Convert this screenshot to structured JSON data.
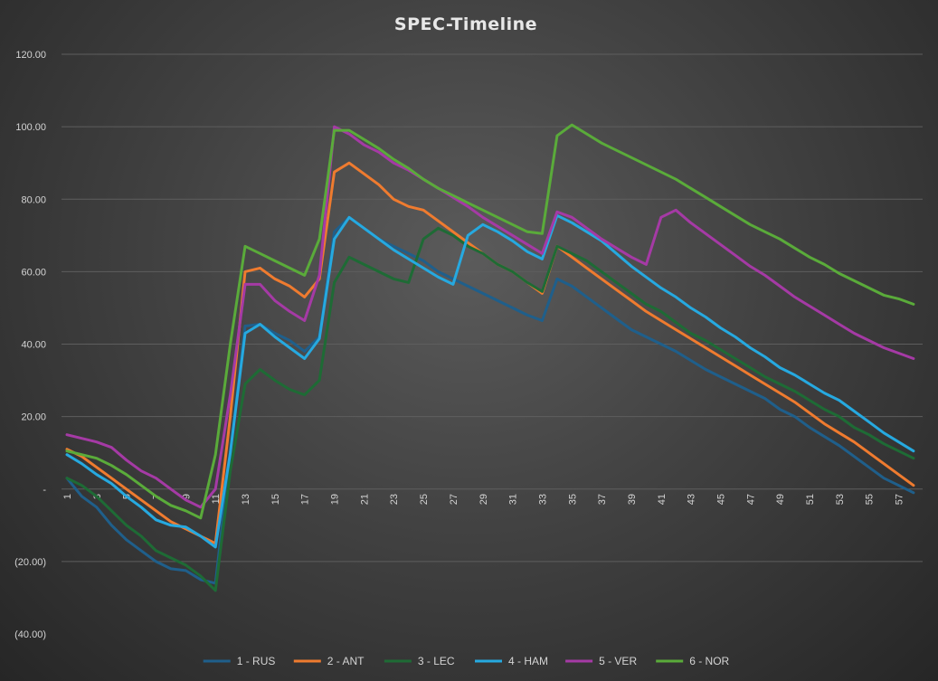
{
  "chart_data": {
    "type": "line",
    "title": "SPEC-Timeline",
    "xlabel": "",
    "ylabel": "",
    "ylim": [
      -40,
      120
    ],
    "yticks": [
      120,
      100,
      80,
      60,
      40,
      20,
      0,
      -20,
      -40
    ],
    "ytick_labels": [
      "120.00",
      "100.00",
      "80.00",
      "60.00",
      "40.00",
      "20.00",
      "-",
      "(20.00)",
      "(40.00)"
    ],
    "x": [
      1,
      2,
      3,
      4,
      5,
      6,
      7,
      8,
      9,
      10,
      11,
      12,
      13,
      14,
      15,
      16,
      17,
      18,
      19,
      20,
      21,
      22,
      23,
      24,
      25,
      26,
      27,
      28,
      29,
      30,
      31,
      32,
      33,
      34,
      35,
      36,
      37,
      38,
      39,
      40,
      41,
      42,
      43,
      44,
      45,
      46,
      47,
      48,
      49,
      50,
      51,
      52,
      53,
      54,
      55,
      56,
      57,
      58
    ],
    "xtick_labels": [
      "1",
      "3",
      "5",
      "7",
      "9",
      "11",
      "13",
      "15",
      "17",
      "19",
      "21",
      "23",
      "25",
      "27",
      "29",
      "31",
      "33",
      "35",
      "37",
      "39",
      "41",
      "43",
      "45",
      "47",
      "49",
      "51",
      "53",
      "55",
      "57"
    ],
    "grid": true,
    "legend_position": "bottom",
    "series": [
      {
        "name": "1 - RUS",
        "color": "#1f5f8b",
        "values": [
          3,
          -2,
          -5,
          -10,
          -14,
          -17,
          -20,
          -22,
          -22.5,
          -25,
          -26,
          10,
          45,
          45.5,
          43,
          41,
          38,
          42,
          71,
          75,
          72,
          69,
          67,
          65,
          63,
          60,
          58,
          56,
          54,
          52,
          50,
          48,
          46.5,
          58,
          56,
          53,
          50,
          47,
          44,
          42,
          40,
          38,
          35.5,
          33,
          31,
          29,
          27,
          25,
          22,
          20,
          17,
          14.5,
          12,
          9,
          6,
          3,
          1,
          -1
        ]
      },
      {
        "name": "2 - ANT",
        "color": "#ef7b2f",
        "values": [
          11,
          9,
          6,
          3,
          0,
          -3,
          -6,
          -9,
          -11,
          -13,
          -15,
          20,
          60,
          61,
          58,
          56,
          53,
          58,
          87.5,
          90,
          87,
          84,
          80,
          78,
          77,
          74,
          71,
          68,
          65,
          62,
          60,
          57,
          54,
          67,
          64,
          61,
          58,
          55,
          52,
          49,
          46.5,
          44,
          41.5,
          39,
          36.5,
          34,
          31.5,
          29,
          26.5,
          24,
          21,
          18,
          15.5,
          13,
          10,
          7,
          4,
          1
        ]
      },
      {
        "name": "3 - LEC",
        "color": "#1e6b35",
        "values": [
          3,
          1,
          -2,
          -6,
          -10,
          -13,
          -17,
          -19,
          -21,
          -24,
          -28,
          5,
          29,
          33,
          30,
          27.5,
          26,
          30,
          57,
          64,
          62,
          60,
          58,
          57,
          69,
          72,
          70,
          67,
          65,
          62,
          60,
          57,
          54.5,
          67,
          65,
          63,
          60,
          57,
          54,
          51,
          49,
          46,
          43,
          41,
          38.5,
          36,
          33.5,
          31,
          29,
          27,
          24.5,
          22,
          20,
          17,
          15,
          12.5,
          10.5,
          8.5
        ]
      },
      {
        "name": "4 - HAM",
        "color": "#26a9e0",
        "values": [
          9.5,
          7,
          4,
          1.5,
          -2,
          -5,
          -8.5,
          -10,
          -10.5,
          -13,
          -16,
          10,
          43,
          45.5,
          42,
          39,
          36,
          41.5,
          69,
          75,
          72,
          69,
          66,
          63.5,
          61,
          58.5,
          56.5,
          70,
          73,
          71,
          68.5,
          65.5,
          63.5,
          75.5,
          73.5,
          71,
          68.5,
          65,
          61.5,
          58.5,
          55.5,
          53,
          50,
          47.5,
          44.5,
          42,
          39,
          36.5,
          33.5,
          31.5,
          29,
          26.5,
          24.5,
          21.5,
          18.5,
          15.5,
          13,
          10.5
        ]
      },
      {
        "name": "5 - VER",
        "color": "#a53aa5",
        "values": [
          15,
          14,
          13,
          11.5,
          8,
          5,
          3,
          0,
          -3,
          -5,
          0,
          26,
          56.5,
          56.5,
          52,
          49,
          46.5,
          59,
          100,
          98,
          95,
          93,
          90,
          88,
          85.5,
          83,
          80.5,
          78,
          75,
          72.5,
          70,
          67.5,
          65,
          76.5,
          75,
          72,
          69,
          66.5,
          64,
          62,
          75,
          77,
          73.5,
          70.5,
          67.5,
          64.5,
          61.5,
          59,
          56,
          53,
          50.5,
          48,
          45.5,
          43,
          41,
          39,
          37.5,
          36
        ]
      },
      {
        "name": "6 - NOR",
        "color": "#5aab3a",
        "values": [
          10.5,
          9.5,
          8.5,
          6.5,
          4,
          1,
          -2,
          -4.5,
          -6,
          -8,
          9.5,
          40,
          67,
          65,
          63,
          61,
          59,
          69,
          99,
          99,
          96.5,
          94,
          91,
          88.5,
          85.5,
          83,
          81,
          79,
          77,
          75,
          73,
          71,
          70.5,
          97.5,
          100.5,
          98,
          95.5,
          93.5,
          91.5,
          89.5,
          87.5,
          85.5,
          83,
          80.5,
          78,
          75.5,
          73,
          71,
          69,
          66.5,
          64,
          62,
          59.5,
          57.5,
          55.5,
          53.5,
          52.5,
          51
        ]
      }
    ]
  }
}
